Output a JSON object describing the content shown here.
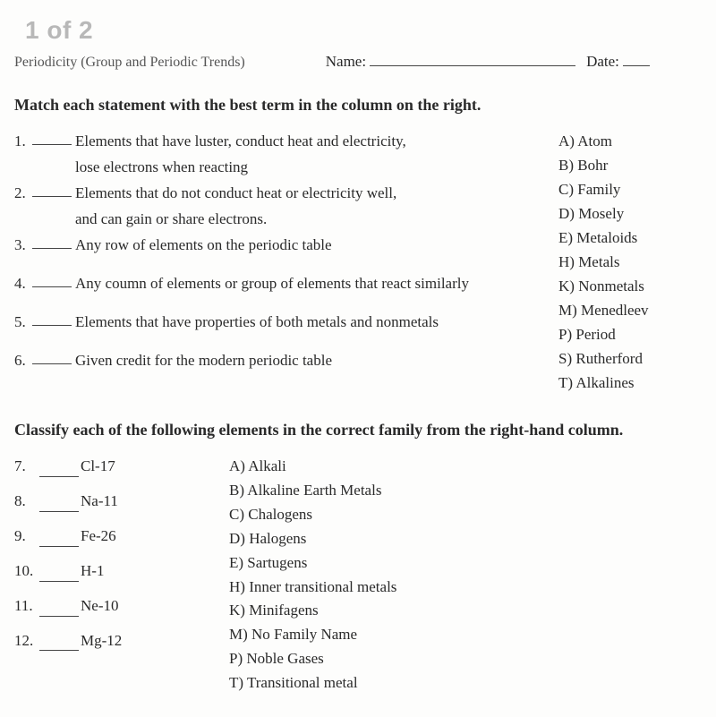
{
  "page_indicator": "1 of 2",
  "header": {
    "subject": "Periodicity (Group and Periodic Trends)",
    "name_label": "Name:",
    "date_label": "Date:"
  },
  "section1": {
    "title": "Match each statement with the best term in the column on the right.",
    "questions": [
      {
        "n": "1.",
        "text1": "Elements that have luster, conduct heat and electricity,",
        "text2": "lose electrons when reacting"
      },
      {
        "n": "2.",
        "text1": "Elements that do not conduct heat or electricity well,",
        "text2": "and can gain or share electrons."
      },
      {
        "n": "3.",
        "text1": "Any row of elements on the periodic table"
      },
      {
        "n": "4.",
        "text1": "Any coumn of elements or group of elements that react similarly"
      },
      {
        "n": "5.",
        "text1": "Elements that have properties of both metals and nonmetals"
      },
      {
        "n": "6.",
        "text1": "Given credit for the modern periodic table"
      }
    ],
    "answers": [
      "A) Atom",
      "B) Bohr",
      "C) Family",
      "D) Mosely",
      "E) Metaloids",
      "H) Metals",
      "K) Nonmetals",
      "M) Menedleev",
      "P) Period",
      "S) Rutherford",
      "T) Alkalines"
    ]
  },
  "section2": {
    "title": "Classify each of the following elements in the correct family from the right-hand column.",
    "questions": [
      {
        "n": "7.",
        "text": "Cl-17"
      },
      {
        "n": "8.",
        "text": "Na-11"
      },
      {
        "n": "9.",
        "text": "Fe-26"
      },
      {
        "n": "10.",
        "text": "H-1"
      },
      {
        "n": "11.",
        "text": "Ne-10"
      },
      {
        "n": "12.",
        "text": "Mg-12"
      }
    ],
    "answers": [
      "A) Alkali",
      "B) Alkaline Earth Metals",
      "C) Chalogens",
      "D) Halogens",
      "E) Sartugens",
      "H) Inner transitional metals",
      "K) Minifagens",
      "M) No Family Name",
      "P) Noble Gases",
      "T) Transitional metal"
    ]
  }
}
